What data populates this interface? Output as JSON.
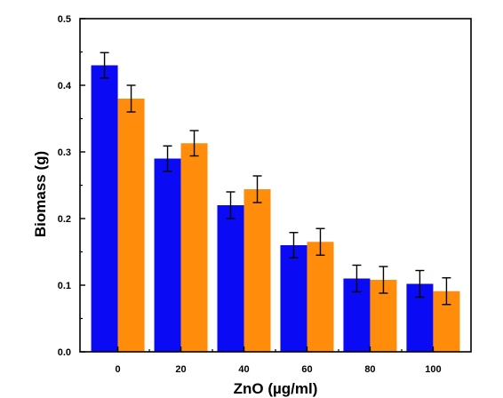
{
  "chart_data": {
    "type": "bar",
    "title": "",
    "xlabel": "ZnO (µg/ml)",
    "ylabel": "Biomass (g)",
    "categories": [
      "0",
      "20",
      "40",
      "60",
      "80",
      "100"
    ],
    "ylim": [
      0,
      0.5
    ],
    "yticks": [
      "0.0",
      "0.1",
      "0.2",
      "0.3",
      "0.4",
      "0.5"
    ],
    "grid": false,
    "legend": "none",
    "series": [
      {
        "color": "#0a0af5",
        "values": [
          0.43,
          0.29,
          0.22,
          0.16,
          0.11,
          0.102
        ],
        "errors": [
          0.019,
          0.019,
          0.02,
          0.019,
          0.02,
          0.02
        ]
      },
      {
        "color": "#ff8c0a",
        "values": [
          0.38,
          0.313,
          0.244,
          0.165,
          0.108,
          0.091
        ],
        "errors": [
          0.02,
          0.019,
          0.02,
          0.02,
          0.02,
          0.02
        ]
      }
    ]
  }
}
